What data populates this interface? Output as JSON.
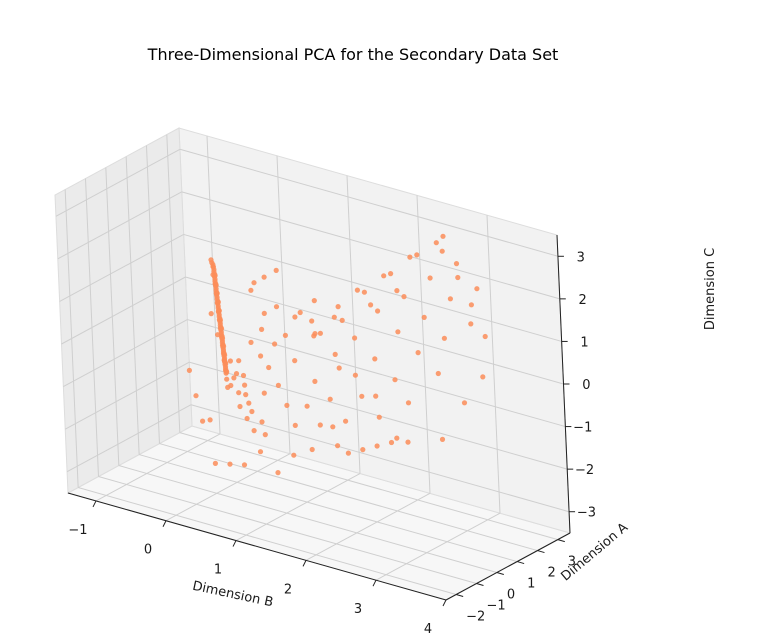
{
  "chart_data": {
    "type": "scatter",
    "projection": "3d",
    "title": "Three-Dimensional PCA for the Secondary Data Set",
    "xlabel": "Dimension B",
    "ylabel": "Dimension A",
    "zlabel": "Dimension C",
    "xlim": [
      -1.4,
      4.0
    ],
    "ylim": [
      -2.5,
      3.6
    ],
    "zlim": [
      -3.5,
      3.5
    ],
    "xticks": [
      -1,
      0,
      1,
      2,
      3,
      4
    ],
    "yticks": [
      -2,
      -1,
      0,
      1,
      2,
      3
    ],
    "zticks": [
      -3,
      -2,
      -1,
      0,
      1,
      2,
      3
    ],
    "xtick_labels": [
      "−1",
      "0",
      "1",
      "2",
      "3",
      "4"
    ],
    "ytick_labels": [
      "−2",
      "−1",
      "0",
      "1",
      "2",
      "3"
    ],
    "ztick_labels": [
      "−3",
      "−2",
      "−1",
      "0",
      "1",
      "2",
      "3"
    ],
    "grid": true,
    "marker_color": "#fc8d59",
    "pane_colors": [
      "#f2f2f2",
      "#ebebeb",
      "#f7f7f7"
    ],
    "series": [
      {
        "points": [
          [
            -0.95,
            3.4,
            0.6
          ],
          [
            -0.92,
            3.35,
            0.58
          ],
          [
            -0.9,
            3.3,
            0.55
          ],
          [
            -0.87,
            3.22,
            0.52
          ],
          [
            -0.85,
            3.15,
            0.5
          ],
          [
            -0.82,
            3.08,
            0.47
          ],
          [
            -0.8,
            3.0,
            0.44
          ],
          [
            -0.77,
            2.92,
            0.42
          ],
          [
            -0.75,
            2.85,
            0.4
          ],
          [
            -0.72,
            2.78,
            0.37
          ],
          [
            -0.7,
            2.7,
            0.35
          ],
          [
            -0.67,
            2.62,
            0.32
          ],
          [
            -0.65,
            2.55,
            0.3
          ],
          [
            -0.62,
            2.48,
            0.28
          ],
          [
            -0.6,
            2.4,
            0.26
          ],
          [
            -0.57,
            2.32,
            0.24
          ],
          [
            -0.55,
            2.25,
            0.22
          ],
          [
            -0.52,
            2.18,
            0.2
          ],
          [
            -0.5,
            2.1,
            0.18
          ],
          [
            -0.47,
            2.02,
            0.16
          ],
          [
            -0.45,
            1.95,
            0.14
          ],
          [
            -0.42,
            1.88,
            0.12
          ],
          [
            -0.4,
            1.8,
            0.1
          ],
          [
            -0.37,
            1.72,
            0.08
          ],
          [
            -0.35,
            1.65,
            0.06
          ],
          [
            -0.32,
            1.58,
            0.04
          ],
          [
            -0.3,
            1.5,
            0.02
          ],
          [
            -0.27,
            1.42,
            0.0
          ],
          [
            -0.25,
            1.35,
            -0.02
          ],
          [
            -0.22,
            1.28,
            -0.04
          ],
          [
            -0.2,
            1.2,
            -0.06
          ],
          [
            -0.17,
            1.12,
            -0.08
          ],
          [
            -0.15,
            1.05,
            -0.1
          ],
          [
            -0.12,
            0.98,
            -0.12
          ],
          [
            -0.1,
            0.9,
            -0.14
          ],
          [
            -0.07,
            0.82,
            -0.16
          ],
          [
            -0.05,
            0.75,
            -0.18
          ],
          [
            -0.02,
            0.68,
            -0.2
          ],
          [
            0.0,
            0.6,
            -0.22
          ],
          [
            0.03,
            0.52,
            -0.24
          ],
          [
            0.05,
            0.45,
            -0.26
          ],
          [
            0.08,
            0.38,
            -0.28
          ],
          [
            0.1,
            0.3,
            -0.3
          ],
          [
            0.13,
            0.22,
            -0.32
          ],
          [
            0.15,
            0.15,
            -0.34
          ],
          [
            0.18,
            0.08,
            -0.36
          ],
          [
            0.2,
            0.0,
            -0.38
          ],
          [
            0.23,
            -0.08,
            -0.4
          ],
          [
            0.25,
            -0.15,
            -0.42
          ],
          [
            0.28,
            -0.22,
            -0.44
          ],
          [
            0.3,
            -0.3,
            -0.46
          ],
          [
            -0.93,
            3.3,
            0.7
          ],
          [
            -0.88,
            3.2,
            0.4
          ],
          [
            -0.83,
            3.05,
            0.65
          ],
          [
            -0.78,
            2.95,
            0.3
          ],
          [
            -0.73,
            2.8,
            0.55
          ],
          [
            -0.68,
            2.65,
            0.2
          ],
          [
            -0.63,
            2.5,
            0.45
          ],
          [
            -0.58,
            2.35,
            0.1
          ],
          [
            -0.53,
            2.2,
            0.38
          ],
          [
            -0.48,
            2.05,
            0.02
          ],
          [
            -0.43,
            1.9,
            0.3
          ],
          [
            -0.38,
            1.75,
            -0.05
          ],
          [
            -0.33,
            1.6,
            0.22
          ],
          [
            -0.28,
            1.45,
            -0.12
          ],
          [
            -0.23,
            1.3,
            0.12
          ],
          [
            -0.18,
            1.15,
            -0.2
          ],
          [
            -0.13,
            1.0,
            0.05
          ],
          [
            -0.08,
            0.85,
            -0.28
          ],
          [
            -0.03,
            0.7,
            -0.05
          ],
          [
            0.02,
            0.55,
            -0.35
          ],
          [
            0.07,
            0.4,
            -0.12
          ],
          [
            0.12,
            0.25,
            -0.42
          ],
          [
            0.17,
            0.1,
            -0.2
          ],
          [
            0.22,
            -0.05,
            -0.5
          ],
          [
            0.27,
            -0.2,
            -0.28
          ],
          [
            0.32,
            -0.35,
            -0.58
          ],
          [
            0.37,
            -0.5,
            -0.35
          ],
          [
            0.42,
            -0.65,
            -0.65
          ],
          [
            0.1,
            0.6,
            -0.5
          ],
          [
            0.3,
            0.2,
            -0.6
          ],
          [
            0.5,
            -0.1,
            -0.7
          ],
          [
            0.6,
            -0.4,
            -0.8
          ],
          [
            0.7,
            -0.6,
            -0.9
          ],
          [
            0.4,
            0.0,
            -0.2
          ],
          [
            0.55,
            -0.3,
            -0.4
          ],
          [
            0.8,
            -0.8,
            -1.0
          ],
          [
            0.9,
            -0.5,
            -0.6
          ],
          [
            1.0,
            -1.0,
            -1.1
          ],
          [
            0.2,
            0.4,
            -0.8
          ],
          [
            0.35,
            0.1,
            -1.0
          ],
          [
            0.45,
            -0.2,
            -1.2
          ],
          [
            0.65,
            -0.55,
            -1.3
          ],
          [
            0.85,
            -0.9,
            -1.4
          ],
          [
            1.1,
            -1.2,
            -1.3
          ],
          [
            0.5,
            0.3,
            0.2
          ],
          [
            0.75,
            -0.1,
            0.1
          ],
          [
            0.95,
            -0.4,
            0.0
          ],
          [
            1.2,
            -0.8,
            -0.2
          ],
          [
            1.4,
            -1.1,
            -0.5
          ],
          [
            1.6,
            -1.4,
            -0.8
          ],
          [
            0.6,
            0.5,
            0.5
          ],
          [
            0.9,
            0.1,
            0.4
          ],
          [
            1.3,
            -0.3,
            0.3
          ],
          [
            1.7,
            -0.7,
            0.1
          ],
          [
            2.0,
            -1.0,
            -0.1
          ],
          [
            2.3,
            -1.3,
            -0.4
          ],
          [
            1.0,
            0.8,
            0.9
          ],
          [
            1.4,
            0.4,
            0.8
          ],
          [
            1.8,
            0.0,
            0.6
          ],
          [
            2.2,
            -0.4,
            0.4
          ],
          [
            2.6,
            -0.8,
            0.2
          ],
          [
            1.2,
            1.1,
            1.3
          ],
          [
            1.6,
            0.7,
            1.2
          ],
          [
            2.0,
            0.3,
            1.0
          ],
          [
            2.4,
            -0.1,
            0.8
          ],
          [
            2.8,
            -0.5,
            0.6
          ],
          [
            3.1,
            -0.9,
            0.3
          ],
          [
            1.8,
            1.2,
            1.8
          ],
          [
            2.2,
            0.8,
            1.6
          ],
          [
            2.6,
            0.4,
            1.4
          ],
          [
            3.0,
            0.0,
            1.2
          ],
          [
            3.4,
            -0.4,
            1.0
          ],
          [
            2.1,
            1.5,
            2.2
          ],
          [
            2.5,
            1.1,
            2.0
          ],
          [
            2.9,
            0.7,
            1.8
          ],
          [
            3.3,
            0.3,
            1.6
          ],
          [
            2.4,
            1.8,
            2.7
          ],
          [
            2.8,
            1.4,
            2.5
          ],
          [
            3.2,
            1.0,
            2.3
          ],
          [
            3.6,
            0.6,
            2.0
          ],
          [
            2.7,
            2.1,
            3.1
          ],
          [
            3.1,
            1.7,
            2.9
          ],
          [
            3.5,
            1.3,
            2.6
          ],
          [
            0.4,
            0.9,
            1.4
          ],
          [
            0.7,
            0.4,
            1.8
          ],
          [
            1.0,
            0.0,
            2.2
          ],
          [
            0.2,
            1.4,
            1.0
          ],
          [
            0.5,
            1.0,
            0.7
          ],
          [
            0.8,
            0.6,
            1.1
          ],
          [
            1.5,
            -0.6,
            1.6
          ],
          [
            1.9,
            -1.0,
            1.4
          ],
          [
            2.3,
            -1.5,
            0.9
          ],
          [
            2.7,
            -1.8,
            0.5
          ],
          [
            3.0,
            -2.0,
            0.2
          ],
          [
            3.3,
            -2.2,
            -0.1
          ],
          [
            1.2,
            -1.8,
            -1.5
          ],
          [
            1.5,
            -2.0,
            -1.8
          ],
          [
            0.9,
            -1.6,
            -2.0
          ],
          [
            0.6,
            -1.3,
            -2.2
          ],
          [
            0.3,
            -1.0,
            -2.4
          ],
          [
            1.8,
            -2.2,
            -1.2
          ],
          [
            2.1,
            -2.3,
            -0.9
          ],
          [
            2.5,
            -2.4,
            -0.6
          ],
          [
            0.1,
            -0.5,
            -1.6
          ],
          [
            -0.1,
            -0.2,
            -1.8
          ],
          [
            -0.3,
            0.2,
            -1.4
          ],
          [
            -0.5,
            0.6,
            -1.0
          ],
          [
            0.0,
            0.9,
            -1.2
          ],
          [
            -0.2,
            1.3,
            -0.8
          ],
          [
            -0.4,
            1.7,
            -0.4
          ],
          [
            -0.6,
            2.1,
            -0.1
          ],
          [
            1.3,
            0.2,
            -0.9
          ],
          [
            1.6,
            -0.2,
            -1.1
          ],
          [
            1.9,
            -0.6,
            -0.9
          ],
          [
            2.2,
            -0.9,
            -1.3
          ],
          [
            2.5,
            -1.2,
            -1.0
          ],
          [
            2.8,
            -1.5,
            -0.7
          ],
          [
            3.1,
            -1.8,
            -0.4
          ],
          [
            3.4,
            -2.0,
            -0.2
          ],
          [
            0.7,
            1.3,
            0.2
          ],
          [
            1.0,
            1.6,
            0.6
          ],
          [
            1.3,
            1.9,
            1.0
          ],
          [
            1.6,
            2.2,
            1.4
          ],
          [
            1.9,
            2.5,
            1.9
          ],
          [
            2.2,
            2.8,
            2.4
          ],
          [
            2.5,
            3.1,
            2.9
          ],
          [
            0.9,
            2.0,
            0.1
          ],
          [
            1.2,
            2.4,
            0.5
          ],
          [
            1.5,
            2.8,
            0.9
          ],
          [
            1.8,
            3.1,
            1.3
          ],
          [
            3.7,
            -0.2,
            0.4
          ],
          [
            3.8,
            0.4,
            0.9
          ],
          [
            3.6,
            -1.0,
            -0.3
          ],
          [
            3.5,
            1.6,
            1.4
          ],
          [
            3.2,
            2.0,
            1.9
          ],
          [
            2.9,
            2.4,
            2.3
          ],
          [
            2.6,
            2.7,
            2.7
          ]
        ]
      }
    ]
  }
}
